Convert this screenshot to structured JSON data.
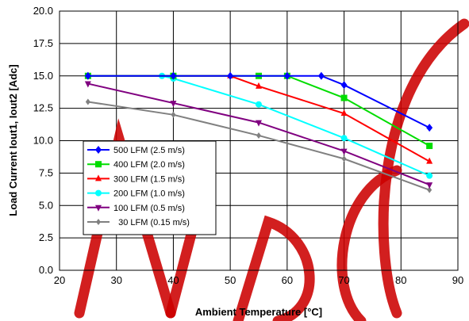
{
  "chart_data": {
    "type": "line",
    "xlabel": "Ambient Temperature [°C]",
    "ylabel": "Load Current  Iout1, Iout2 [Adc]",
    "xlim": [
      20,
      90
    ],
    "ylim": [
      0.0,
      20.0
    ],
    "xticks": [
      20,
      30,
      40,
      50,
      60,
      70,
      80,
      90
    ],
    "yticks": [
      "0.0",
      "2.5",
      "5.0",
      "7.5",
      "10.0",
      "12.5",
      "15.0",
      "17.5",
      "20.0"
    ],
    "grid": true,
    "legend_position": "lower-left",
    "watermark_color": "#cc0000",
    "series": [
      {
        "name": "500 LFM (2.5 m/s)",
        "color": "#0000ff",
        "marker": "diamond",
        "x": [
          25,
          40,
          50,
          60,
          66,
          70,
          85
        ],
        "y": [
          15.0,
          15.0,
          15.0,
          15.0,
          15.0,
          14.3,
          11.0
        ]
      },
      {
        "name": "400 LFM (2.0 m/s)",
        "color": "#00dd00",
        "marker": "square",
        "x": [
          25,
          40,
          55,
          60,
          70,
          85
        ],
        "y": [
          15.0,
          15.0,
          15.0,
          15.0,
          13.3,
          9.6
        ]
      },
      {
        "name": "300 LFM (1.5 m/s)",
        "color": "#ff0000",
        "marker": "triangle",
        "x": [
          25,
          40,
          50,
          55,
          70,
          85
        ],
        "y": [
          15.0,
          15.0,
          15.0,
          14.2,
          12.1,
          8.4
        ]
      },
      {
        "name": "200 LFM (1.0 m/s)",
        "color": "#00ffff",
        "marker": "circle",
        "x": [
          25,
          38,
          40,
          55,
          70,
          85
        ],
        "y": [
          15.0,
          15.0,
          14.8,
          12.8,
          10.2,
          7.3
        ]
      },
      {
        "name": "100 LFM (0.5 m/s)",
        "color": "#800080",
        "marker": "triangle-down",
        "x": [
          25,
          40,
          55,
          70,
          85
        ],
        "y": [
          14.4,
          12.9,
          11.4,
          9.2,
          6.6
        ]
      },
      {
        "name": "  30 LFM (0.15 m/s)",
        "color": "#808080",
        "marker": "diamond-small",
        "x": [
          25,
          40,
          55,
          70,
          85
        ],
        "y": [
          13.0,
          12.0,
          10.4,
          8.6,
          6.2
        ]
      }
    ]
  }
}
